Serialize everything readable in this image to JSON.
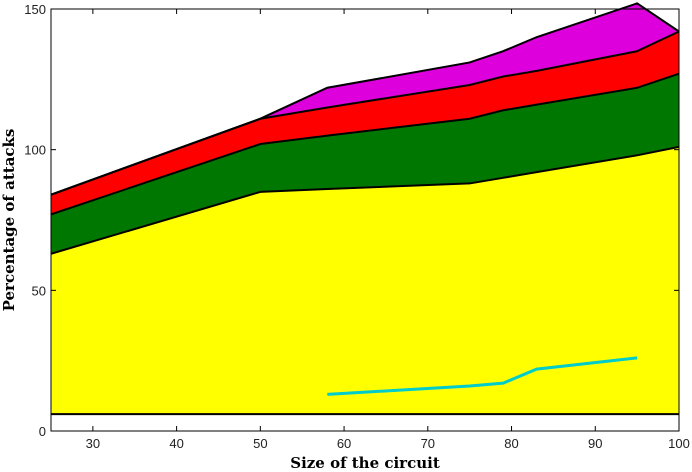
{
  "chart_data": {
    "type": "area",
    "title": "",
    "xlabel": "Size of the circuit",
    "ylabel": "Percentage of attacks",
    "xlim": [
      25,
      100
    ],
    "ylim": [
      0,
      150
    ],
    "xticks": [
      30,
      40,
      50,
      60,
      70,
      80,
      90,
      100
    ],
    "yticks": [
      0,
      50,
      100,
      150
    ],
    "grid": false,
    "legend": "none",
    "baseline": 6,
    "x": [
      25,
      50,
      58,
      75,
      79,
      83,
      95,
      100
    ],
    "series": [
      {
        "color": "#ffff00",
        "values": [
          57,
          79,
          80,
          82,
          84,
          86,
          92,
          95
        ]
      },
      {
        "color": "#007700",
        "values": [
          14,
          17,
          19,
          23,
          24,
          24,
          24,
          26
        ]
      },
      {
        "color": "#ff0000",
        "values": [
          7,
          9,
          10,
          12,
          12,
          12,
          13,
          15
        ]
      },
      {
        "color": "#dd00dd",
        "values": [
          0,
          0,
          7,
          8,
          9,
          12,
          17,
          0
        ]
      }
    ],
    "line": {
      "color": "#00cccc",
      "x": [
        58,
        75,
        79,
        83,
        95
      ],
      "values": [
        13,
        16,
        17,
        22,
        26
      ]
    }
  }
}
